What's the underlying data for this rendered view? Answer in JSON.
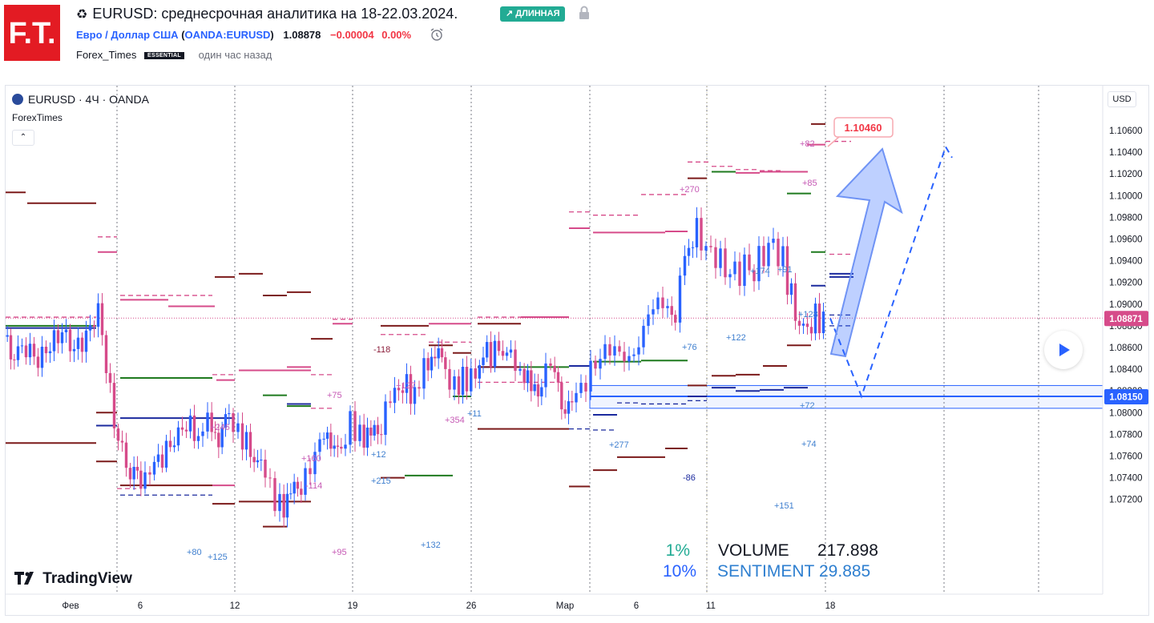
{
  "header": {
    "title_icon": "recycle-icon",
    "title": "EURUSD: среднесрочная аналитика на 18-22.03.2024.",
    "badge": "↗ ДЛИННАЯ",
    "pair_name": "Евро / Доллар США",
    "ticker": "OANDA:EURUSD",
    "price": "1.08878",
    "change": "−0.00004",
    "change_pct": "0.00%",
    "author": "Forex_Times",
    "author_badge": "ESSENTIAL",
    "published": "один час назад"
  },
  "logo_text": "F.T.",
  "chart": {
    "legend": "EURUSD · 4Ч · OANDA",
    "indicator": "ForexTimes",
    "collapse": "⌃",
    "currency": "USD",
    "watermark": "TradingView",
    "y_ticks": [
      "1.10600",
      "1.10400",
      "1.10200",
      "1.10000",
      "1.09800",
      "1.09600",
      "1.09400",
      "1.09200",
      "1.09000",
      "1.08800",
      "1.08600",
      "1.08400",
      "1.08200",
      "1.08000",
      "1.07800",
      "1.07600",
      "1.07400",
      "1.07200"
    ],
    "x_ticks": [
      "Фев",
      "6",
      "12",
      "19",
      "26",
      "Мар",
      "6",
      "11",
      "18"
    ],
    "current_price_label": "1.08871",
    "level_label": "1.08150",
    "target_label": "1.10460",
    "stats": {
      "pct1": "1%",
      "pct2": "10%",
      "volume_label": "VOLUME",
      "volume_value": "217.898",
      "sentiment_label": "SENTIMENT",
      "sentiment_value": "29.885"
    },
    "annotations": [
      "+82",
      "+85",
      "+270",
      "+174",
      "+91",
      "+76",
      "+122",
      "+128",
      "+72",
      "+74",
      "+277",
      "-86",
      "+151",
      "-118",
      "+75",
      "+127",
      "+354",
      "+11",
      "+160",
      "+12",
      "+215",
      "+132",
      "+80",
      "+125",
      "+95",
      "-114",
      "+246"
    ],
    "colors": {
      "pink": "#d64b8a",
      "maroon": "#7b1a1a",
      "green": "#1f7a1f",
      "navy": "#1b2a9e",
      "blue": "#2962ff",
      "up": "#2962ff",
      "down": "#d64b8a"
    }
  },
  "chart_data": {
    "type": "candlestick",
    "symbol": "EURUSD",
    "timeframe": "4Ч",
    "ylim": [
      1.0705,
      1.1075
    ],
    "current_price": 1.08871,
    "support_level": 1.0815,
    "target_level": 1.1046
  }
}
